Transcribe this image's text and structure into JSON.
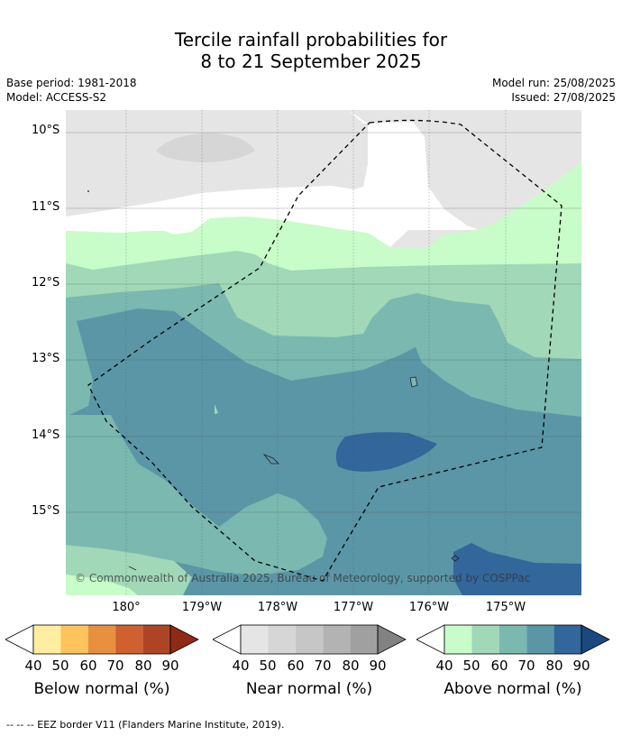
{
  "title_line1": "Tercile rainfall probabilities for",
  "title_line2": "8 to 21 September 2025",
  "base_period": "Base period: 1981-2018",
  "model": "Model: ACCESS-S2",
  "model_run": "Model run: 25/08/2025",
  "issued": "Issued: 27/08/2025",
  "lat_labels": [
    "10°S",
    "11°S",
    "12°S",
    "13°S",
    "14°S",
    "15°S"
  ],
  "lon_labels": [
    "180°",
    "179°W",
    "178°W",
    "177°W",
    "176°W",
    "175°W"
  ],
  "copyright": "© Commonwealth of Australia 2025, Bureau of Meteorology, supported by COSPPac",
  "colorbars": [
    {
      "label": "Below normal (%)",
      "ticks": [
        "40",
        "50",
        "60",
        "70",
        "80",
        "90"
      ],
      "colors": [
        "#ffeda0",
        "#fec35c",
        "#e69040",
        "#d06030",
        "#ad4525",
        "#8f2b15"
      ]
    },
    {
      "label": "Near normal (%)",
      "ticks": [
        "40",
        "50",
        "60",
        "70",
        "80",
        "90"
      ],
      "colors": [
        "#e5e5e5",
        "#d6d6d6",
        "#c6c6c6",
        "#b3b3b3",
        "#a0a0a0",
        "#828282"
      ]
    },
    {
      "label": "Above normal (%)",
      "ticks": [
        "40",
        "50",
        "60",
        "70",
        "80",
        "90"
      ],
      "colors": [
        "#c8fcc8",
        "#a0d8b8",
        "#7ab8b0",
        "#5b96a6",
        "#33669a",
        "#19497f"
      ]
    }
  ],
  "footer": "--  --  -- EEZ border V11 (Flanders Marine Institute, 2019)."
}
